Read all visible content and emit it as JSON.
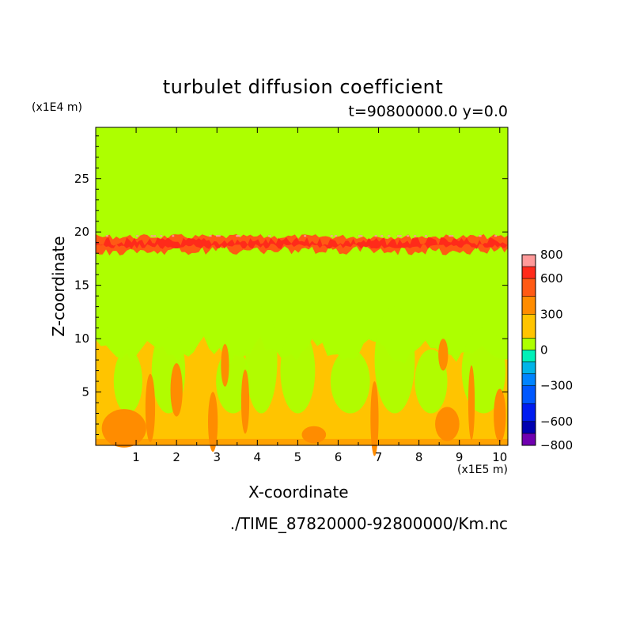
{
  "chart_data": {
    "type": "heatmap",
    "title": "turbulet diffusion coefficient",
    "subtitle": "t=90800000.0 y=0.0",
    "xlabel": "X-coordinate",
    "ylabel": "Z-coordinate",
    "x_unit": "(x1E5 m)",
    "y_unit": "(x1E4 m)",
    "xlim": [
      0,
      10.2
    ],
    "ylim": [
      0,
      29.8
    ],
    "x_ticks": [
      "1",
      "2",
      "3",
      "4",
      "5",
      "6",
      "7",
      "8",
      "9",
      "10"
    ],
    "y_ticks": [
      "5",
      "10",
      "15",
      "20",
      "25"
    ],
    "footer": "./TIME_87820000-92800000/Km.nc",
    "colorbar": {
      "levels": [
        {
          "from": 700,
          "to": 800,
          "color": "#ff9a9a"
        },
        {
          "from": 600,
          "to": 700,
          "color": "#ff2a1a"
        },
        {
          "from": 450,
          "to": 600,
          "color": "#ff5a14"
        },
        {
          "from": 300,
          "to": 450,
          "color": "#ff8c00"
        },
        {
          "from": 100,
          "to": 300,
          "color": "#ffc400"
        },
        {
          "from": 0,
          "to": 100,
          "color": "#adff00"
        },
        {
          "from": -100,
          "to": 0,
          "color": "#00f0b8"
        },
        {
          "from": -200,
          "to": -100,
          "color": "#00b4e8"
        },
        {
          "from": -300,
          "to": -200,
          "color": "#0084ff"
        },
        {
          "from": -450,
          "to": -300,
          "color": "#0058ff"
        },
        {
          "from": -600,
          "to": -450,
          "color": "#001cf0"
        },
        {
          "from": -700,
          "to": -600,
          "color": "#0000b0"
        },
        {
          "from": -800,
          "to": -700,
          "color": "#7000b0"
        }
      ],
      "tick_labels": [
        "800",
        "600",
        "300",
        "0",
        "−300",
        "−600",
        "−800"
      ],
      "tick_values": [
        800,
        600,
        300,
        0,
        -300,
        -600,
        -800
      ]
    },
    "features": [
      {
        "kind": "background",
        "value": 0,
        "description": "near-zero field over domain"
      },
      {
        "kind": "band",
        "z_range": [
          17.5,
          20.0
        ],
        "values": [
          300,
          800
        ]
      },
      {
        "kind": "boundary_layer",
        "z_range": [
          0,
          10.5
        ],
        "values": [
          100,
          600
        ]
      }
    ]
  }
}
